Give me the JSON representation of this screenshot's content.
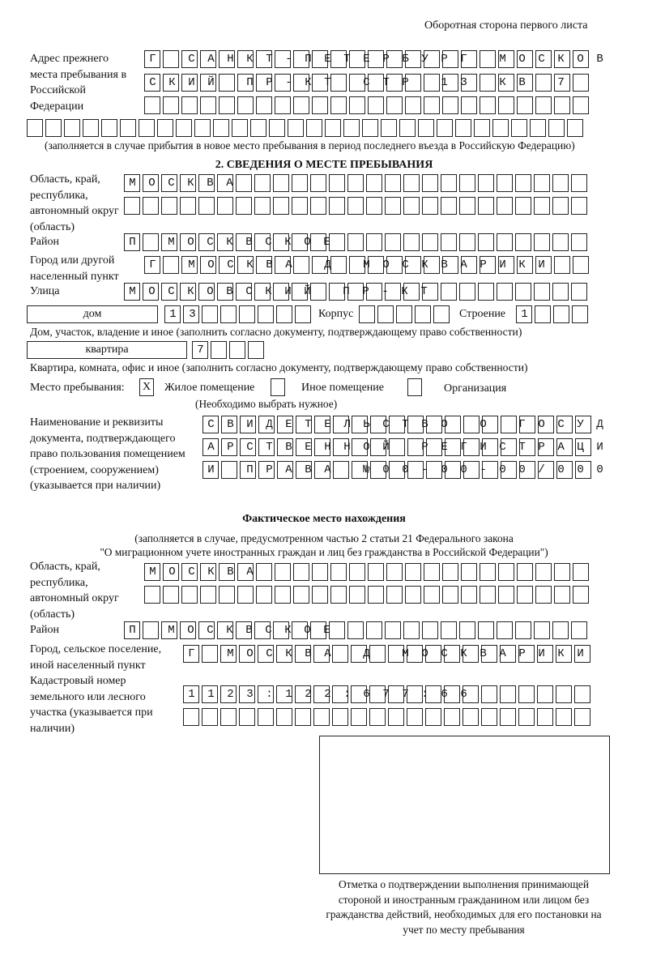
{
  "header": "Оборотная сторона первого листа",
  "prev_address": {
    "label": "Адрес прежнего места пребывания в Российской Федерации",
    "rows": [
      "Г САНКТ-ПЕТЕРБУРГ МОСКОВ",
      "СКИЙ ПР-КТ СТР 13 КВ 7",
      "",
      ""
    ],
    "note": "(заполняется в случае прибытия в новое место пребывания в период последнего въезда в Российскую Федерацию)"
  },
  "section2": {
    "title": "2. СВЕДЕНИЯ О МЕСТЕ ПРЕБЫВАНИЯ",
    "region_label": "Область, край, республика, автономный округ (область)",
    "region_rows": [
      "МОСКВА",
      ""
    ],
    "district_label": "Район",
    "district": "П МОСКВСКОЕ",
    "city_label": "Город или другой населенный пункт",
    "city": "Г МОСКВА Д МОСКВАРИКИ",
    "street_label": "Улица",
    "street": "МОСКОВСКИЙ ПР-КТ",
    "house_type": "дом",
    "house": "13",
    "korpus_label": "Корпус",
    "korpus": "",
    "building_label": "Строение",
    "building": "1",
    "house_note": "Дом, участок, владение и иное (заполнить согласно документу, подтверждающему право собственности)",
    "apt_type": "квартира",
    "apt": "7",
    "apt_note": "Квартира, комната, офис и иное (заполнить согласно документу, подтверждающему право собственности)",
    "place_label": "Место пребывания:",
    "place_options": [
      {
        "label": "Жилое помещение",
        "mark": "X"
      },
      {
        "label": "Иное помещение",
        "mark": ""
      },
      {
        "label": "Организация",
        "mark": ""
      }
    ],
    "place_note": "(Необходимо выбрать нужное)",
    "doc_label": "Наименование и реквизиты документа, подтверждающего право пользования помещением (строением, сооружением) (указывается при наличии)",
    "doc_rows": [
      "СВИДЕТЕЛЬСТВО О ГОСУД",
      "АРСТВЕННОЙ РЕГИСТРАЦИ",
      "И ПРАВА №00-00-00/000"
    ]
  },
  "actual": {
    "title": "Фактическое место нахождения",
    "note1": "(заполняется в случае, предусмотренном частью 2 статьи 21 Федерального закона",
    "note2": "\"О миграционном учете иностранных граждан и лиц без гражданства в Российской Федерации\")",
    "region_label": "Область, край, республика, автономный округ (область)",
    "region_rows": [
      "МОСКВА",
      ""
    ],
    "district_label": "Район",
    "district": "П МОСКВСКОЕ",
    "city_label": "Город, сельское поселение, иной населенный пункт",
    "city": "Г МОСКВА Д МОСКВАРИКИ",
    "cadastre_label": "Кадастровый номер земельного или лесного участка (указывается при наличии)",
    "cadastre_rows": [
      "1123:122:677:66",
      ""
    ]
  },
  "stamp_caption": "Отметка о подтверждении выполнения принимающей стороной и иностранным гражданином или лицом без гражданства действий, необходимых для его постановки на учет по месту пребывания"
}
